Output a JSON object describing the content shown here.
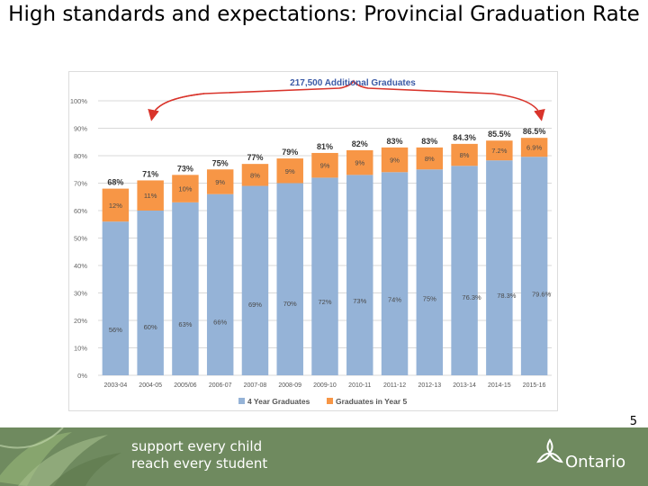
{
  "slide": {
    "title": "High standards and expectations: Provincial Graduation Rate",
    "page_number": "5"
  },
  "footer": {
    "slogan_line1": "support every child",
    "slogan_line2": "reach every student",
    "brand": "Ontario",
    "background_color": "#6f8a5f"
  },
  "chart_data": {
    "type": "bar",
    "stacked": true,
    "annotation": "217,500 Additional Graduates",
    "categories": [
      "2003-04",
      "2004-05",
      "2005/06",
      "2006-07",
      "2007-08",
      "2008-09",
      "2009-10",
      "2010-11",
      "2011-12",
      "2012-13",
      "2013-14",
      "2014-15",
      "2015-16"
    ],
    "series": [
      {
        "name": "4 Year Graduates",
        "color": "#95b3d7",
        "values": [
          56,
          60,
          63,
          66,
          69,
          70,
          72,
          73,
          74,
          75,
          76.3,
          78.3,
          79.6
        ],
        "labels": [
          "56%",
          "60%",
          "63%",
          "66%",
          "69%",
          "70%",
          "72%",
          "73%",
          "74%",
          "75%",
          "76.3%",
          "78.3%",
          "79.6%"
        ]
      },
      {
        "name": "Graduates in Year 5",
        "color": "#f79646",
        "values": [
          12,
          11,
          10,
          9,
          8,
          9,
          9,
          9,
          9,
          8,
          8,
          7.2,
          6.9
        ],
        "labels": [
          "12%",
          "11%",
          "10%",
          "9%",
          "8%",
          "9%",
          "9%",
          "9%",
          "9%",
          "8%",
          "8%",
          "7.2%",
          "6.9%"
        ]
      }
    ],
    "totals": [
      "68%",
      "71%",
      "73%",
      "75%",
      "77%",
      "79%",
      "81%",
      "82%",
      "83%",
      "83%",
      "84.3%",
      "85.5%",
      "86.5%"
    ],
    "total_values": [
      68,
      71,
      73,
      75,
      77,
      79,
      81,
      82,
      83,
      83,
      84.3,
      85.5,
      86.5
    ],
    "yticks": [
      "0%",
      "10%",
      "20%",
      "30%",
      "40%",
      "50%",
      "60%",
      "70%",
      "80%",
      "90%",
      "100%"
    ],
    "ylim": [
      0,
      100
    ],
    "legend_position": "bottom",
    "grid": true
  }
}
